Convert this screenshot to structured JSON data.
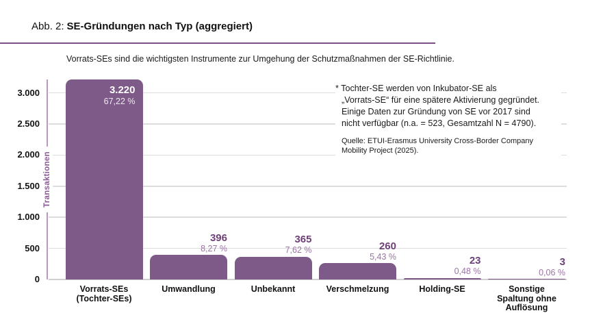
{
  "figure": {
    "title_prefix": "Abb. 2:",
    "title_main": "SE-Gründungen nach Typ (aggregiert)",
    "subtitle": "Vorrats-SEs sind die wichtigsten Instrumente zur Umgehung der Schutzmaßnahmen der SE-Richtlinie."
  },
  "annotation": {
    "lines": [
      "* Tochter-SE werden von Inkubator-SE als",
      "„Vorrats-SE“ für eine spätere Aktivierung gegründet.",
      "Einige Daten zur Gründung von SE vor 2017 sind",
      "nicht verfügbar (n.a. = 523, Gesamtzahl N = 4790)."
    ],
    "source_lines": [
      "Quelle: ETUI-Erasmus University Cross-Border Company",
      "Mobility Project (2025)."
    ]
  },
  "chart_data": {
    "type": "bar",
    "title": "SE-Gründungen nach Typ (aggregiert)",
    "xlabel": "",
    "ylabel": "Transaktionen",
    "categories": [
      "Vorrats-SEs (Tochter-SEs)",
      "Umwandlung",
      "Unbekannt",
      "Verschmelzung",
      "Holding-SE",
      "Sonstige Spaltung ohne Auflösung"
    ],
    "category_lines": [
      [
        "Vorrats-SEs",
        "(Tochter-SEs)"
      ],
      [
        "Umwandlung"
      ],
      [
        "Unbekannt"
      ],
      [
        "Verschmelzung"
      ],
      [
        "Holding-SE"
      ],
      [
        "Sonstige",
        "Spaltung ohne",
        "Auflösung"
      ]
    ],
    "values": [
      3220,
      396,
      365,
      260,
      23,
      3
    ],
    "value_labels": [
      "3.220",
      "396",
      "365",
      "260",
      "23",
      "3"
    ],
    "percent_labels": [
      "67,22 %",
      "8,27 %",
      "7,62 %",
      "5,43 %",
      "0,48 %",
      "0,06 %"
    ],
    "ytick_values": [
      0,
      500,
      1000,
      1500,
      2000,
      2500,
      3000
    ],
    "ytick_labels": [
      "0",
      "500",
      "1.000",
      "1.500",
      "2.000",
      "2.500",
      "3.000"
    ],
    "ylim": [
      0,
      3220
    ],
    "grid": true,
    "legend": false
  },
  "colors": {
    "bar": "#7d5a88",
    "value_label": "#6e4078",
    "percent_label": "#9b74a4",
    "axis_line": "#b89ac0",
    "ylabel_text": "#8a5b95",
    "title_rule": "#7a4f85",
    "gridline": "#dcdcdc",
    "text": "#1a1a1a"
  }
}
